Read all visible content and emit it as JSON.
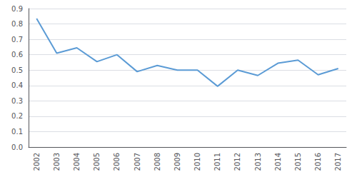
{
  "chart_data": {
    "type": "line",
    "x": [
      2002,
      2003,
      2004,
      2005,
      2006,
      2007,
      2008,
      2009,
      2010,
      2011,
      2012,
      2013,
      2014,
      2015,
      2016,
      2017
    ],
    "values": [
      0.835,
      0.61,
      0.645,
      0.555,
      0.6,
      0.49,
      0.53,
      0.5,
      0.5,
      0.395,
      0.5,
      0.465,
      0.545,
      0.565,
      0.47,
      0.51
    ],
    "color": "#5B9BD5",
    "xlim": [
      2001.6,
      2017.4
    ],
    "xticks": [
      2002,
      2003,
      2004,
      2005,
      2006,
      2007,
      2008,
      2009,
      2010,
      2011,
      2012,
      2013,
      2014,
      2015,
      2016,
      2017
    ],
    "ylim": [
      0.0,
      0.9
    ],
    "yticks": [
      {
        "value": 0.0,
        "label": "0.0"
      },
      0.1,
      0.2,
      0.3,
      0.4,
      0.5,
      0.6,
      0.7,
      0.8,
      0.9
    ],
    "grid": true
  }
}
